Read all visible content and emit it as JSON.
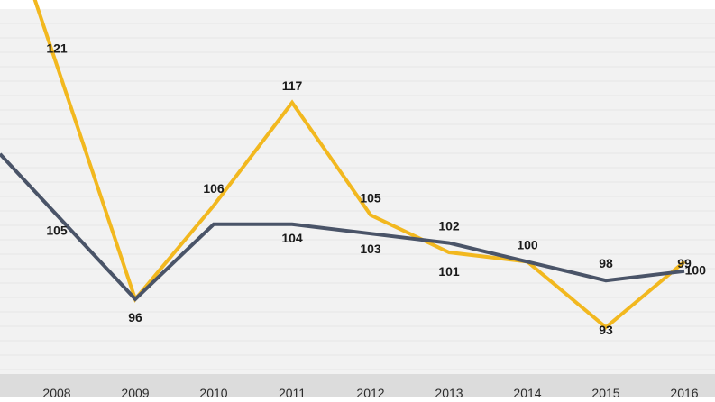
{
  "chart_data": {
    "type": "line",
    "title": "",
    "xlabel": "",
    "ylabel": "",
    "categories": [
      "2008",
      "2009",
      "2010",
      "2011",
      "2012",
      "2013",
      "2014",
      "2015",
      "2016"
    ],
    "series": [
      {
        "color": "#F2B81F",
        "values": [
          121,
          96,
          106,
          117,
          105,
          101,
          100,
          93,
          100
        ],
        "labels": [
          "121",
          "96",
          "106",
          "117",
          "105",
          "101",
          "",
          "93",
          "100"
        ]
      },
      {
        "color": "#4A5468",
        "values": [
          105,
          96,
          104,
          104,
          103,
          102,
          100,
          98,
          99
        ],
        "labels": [
          "105",
          "",
          "",
          "104",
          "103",
          "102",
          "100",
          "98",
          "99"
        ]
      }
    ],
    "ylim": [
      88,
      127
    ],
    "grid": true,
    "legend": "none",
    "colors": {
      "plot_background": "#F2F2F2",
      "axis_band": "#DCDCDC",
      "gridline": "#E6E6E6"
    }
  }
}
